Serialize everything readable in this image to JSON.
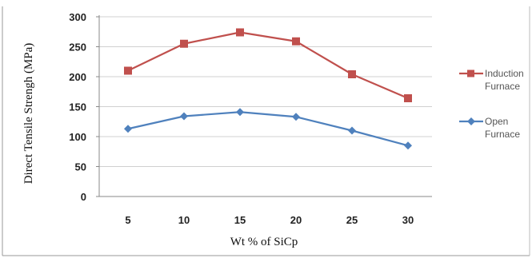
{
  "chart_data": {
    "type": "line",
    "title": "",
    "xlabel": "Wt % of SiCp",
    "ylabel": "Direct Tensile Strengh (MPa)",
    "categories": [
      "5",
      "10",
      "15",
      "20",
      "25",
      "30"
    ],
    "ylim": [
      0,
      300
    ],
    "yticks": [
      "0",
      "50",
      "100",
      "150",
      "200",
      "250",
      "300"
    ],
    "grid": "horizontal",
    "legend_position": "right",
    "series": [
      {
        "name": "Induction Furnace",
        "legend_lines": [
          "Induction",
          "Furnace"
        ],
        "values": [
          210,
          255,
          274,
          259,
          204,
          164
        ],
        "color": "#c0504d",
        "marker": "square"
      },
      {
        "name": "Open Furnace",
        "legend_lines": [
          "Open",
          "Furnace"
        ],
        "values": [
          113,
          134,
          141,
          133,
          110,
          85
        ],
        "color": "#4f81bd",
        "marker": "diamond"
      }
    ]
  }
}
